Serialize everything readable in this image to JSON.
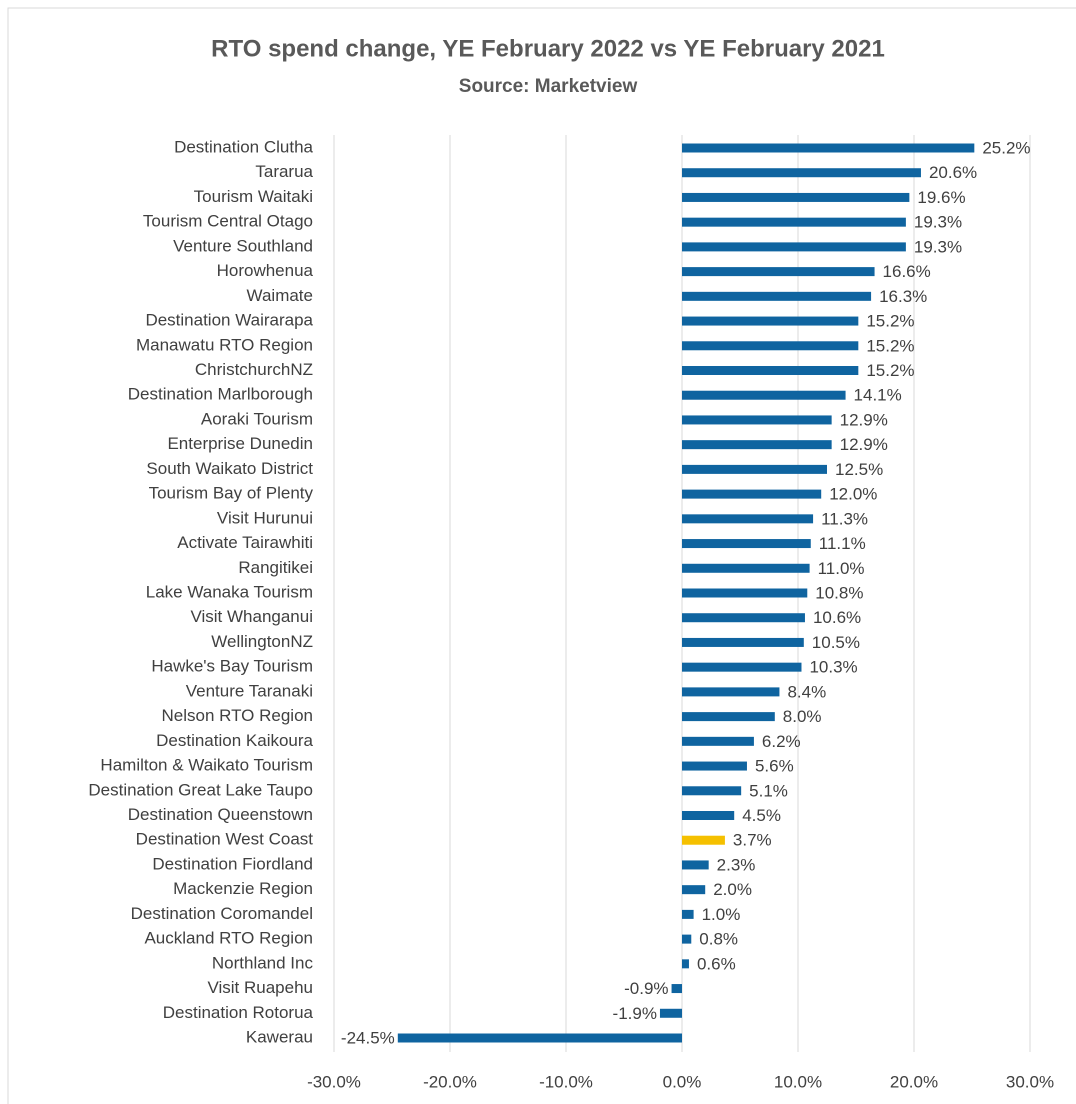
{
  "chart_data": {
    "type": "hbar",
    "title": "RTO spend change, YE February 2022 vs YE February 2021",
    "subtitle": "Source: Marketview",
    "categories": [
      "Destination Clutha",
      "Tararua",
      "Tourism Waitaki",
      "Tourism Central Otago",
      "Venture Southland",
      "Horowhenua",
      "Waimate",
      "Destination Wairarapa",
      "Manawatu RTO Region",
      "ChristchurchNZ",
      "Destination Marlborough",
      "Aoraki Tourism",
      "Enterprise Dunedin",
      "South Waikato District",
      "Tourism Bay of Plenty",
      "Visit Hurunui",
      "Activate Tairawhiti",
      "Rangitikei",
      "Lake Wanaka Tourism",
      "Visit Whanganui",
      "WellingtonNZ",
      "Hawke's Bay Tourism",
      "Venture Taranaki",
      "Nelson RTO Region",
      "Destination Kaikoura",
      "Hamilton & Waikato Tourism",
      "Destination Great Lake Taupo",
      "Destination Queenstown",
      "Destination West Coast",
      "Destination Fiordland",
      "Mackenzie Region",
      "Destination Coromandel",
      "Auckland RTO Region",
      "Northland Inc",
      "Visit Ruapehu",
      "Destination Rotorua",
      "Kawerau"
    ],
    "values": [
      25.2,
      20.6,
      19.6,
      19.3,
      19.3,
      16.6,
      16.3,
      15.2,
      15.2,
      15.2,
      14.1,
      12.9,
      12.9,
      12.5,
      12.0,
      11.3,
      11.1,
      11.0,
      10.8,
      10.6,
      10.5,
      10.3,
      8.4,
      8.0,
      6.2,
      5.6,
      5.1,
      4.5,
      3.7,
      2.3,
      2.0,
      1.0,
      0.8,
      0.6,
      -0.9,
      -1.9,
      -24.5
    ],
    "value_labels": [
      "25.2%",
      "20.6%",
      "19.6%",
      "19.3%",
      "19.3%",
      "16.6%",
      "16.3%",
      "15.2%",
      "15.2%",
      "15.2%",
      "14.1%",
      "12.9%",
      "12.9%",
      "12.5%",
      "12.0%",
      "11.3%",
      "11.1%",
      "11.0%",
      "10.8%",
      "10.6%",
      "10.5%",
      "10.3%",
      "8.4%",
      "8.0%",
      "6.2%",
      "5.6%",
      "5.1%",
      "4.5%",
      "3.7%",
      "2.3%",
      "2.0%",
      "1.0%",
      "0.8%",
      "0.6%",
      "-0.9%",
      "-1.9%",
      "-24.5%"
    ],
    "colors": [
      "#0f64a0",
      "#0f64a0",
      "#0f64a0",
      "#0f64a0",
      "#0f64a0",
      "#0f64a0",
      "#0f64a0",
      "#0f64a0",
      "#0f64a0",
      "#0f64a0",
      "#0f64a0",
      "#0f64a0",
      "#0f64a0",
      "#0f64a0",
      "#0f64a0",
      "#0f64a0",
      "#0f64a0",
      "#0f64a0",
      "#0f64a0",
      "#0f64a0",
      "#0f64a0",
      "#0f64a0",
      "#0f64a0",
      "#0f64a0",
      "#0f64a0",
      "#0f64a0",
      "#0f64a0",
      "#0f64a0",
      "#f5c000",
      "#0f64a0",
      "#0f64a0",
      "#0f64a0",
      "#0f64a0",
      "#0f64a0",
      "#0f64a0",
      "#0f64a0",
      "#0f64a0"
    ],
    "xlim": [
      -30,
      30
    ],
    "xticks": [
      {
        "value": -30,
        "label": "-30.0%"
      },
      {
        "value": -20,
        "label": "-20.0%"
      },
      {
        "value": -10,
        "label": "-10.0%"
      },
      {
        "value": 0,
        "label": "0.0%"
      },
      {
        "value": 10,
        "label": "10.0%"
      },
      {
        "value": 20,
        "label": "20.0%"
      },
      {
        "value": 30,
        "label": "30.0%"
      }
    ],
    "grid": true
  }
}
